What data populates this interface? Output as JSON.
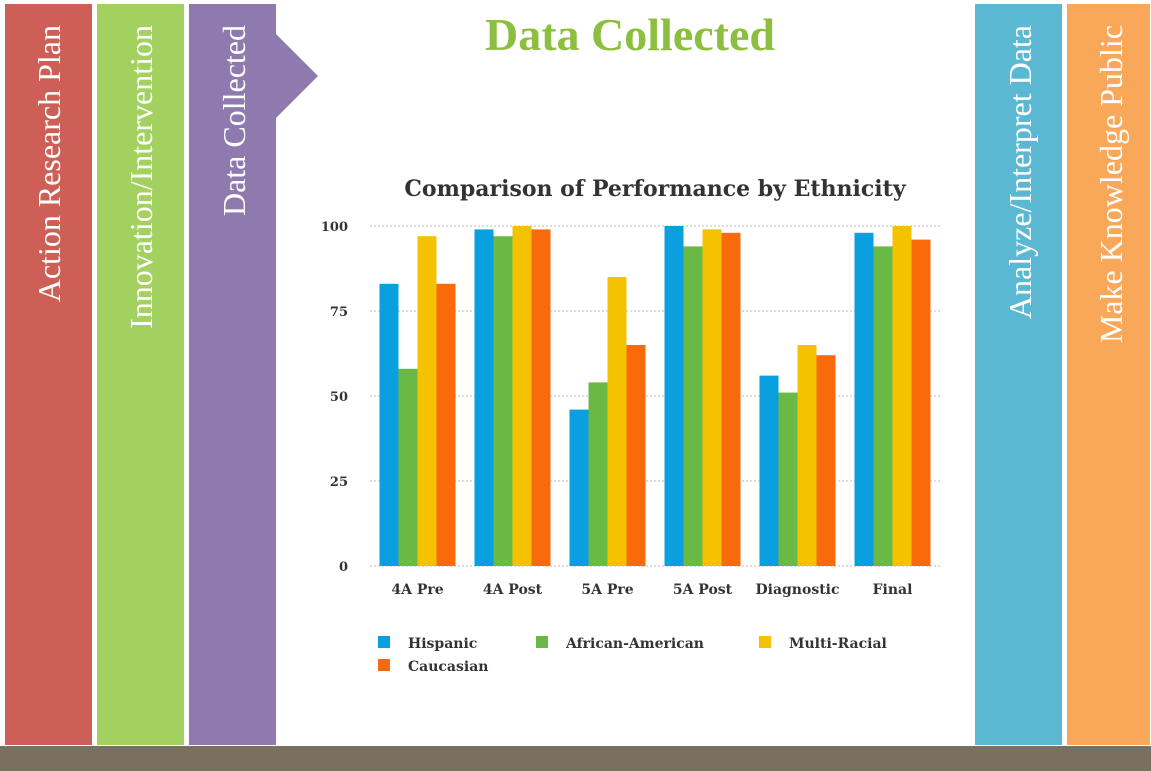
{
  "slide": {
    "title": "Data Collected",
    "left_tabs": [
      "Action Research Plan",
      "Innovation/Intervention",
      "Data Collected"
    ],
    "right_tabs": [
      "Analyze/Interpret  Data",
      "Make Knowledge Public"
    ]
  },
  "chart_data": {
    "type": "bar",
    "title": "Comparison of Performance by Ethnicity",
    "categories": [
      "4A Pre",
      "4A Post",
      "5A Pre",
      "5A Post",
      "Diagnostic",
      "Final"
    ],
    "series": [
      {
        "name": "Hispanic",
        "color": "#0a9fde",
        "values": [
          83,
          99,
          46,
          100,
          56,
          98
        ]
      },
      {
        "name": "African-American",
        "color": "#6ab945",
        "values": [
          58,
          97,
          54,
          94,
          51,
          94
        ]
      },
      {
        "name": "Multi-Racial",
        "color": "#f5c200",
        "values": [
          97,
          100,
          85,
          99,
          65,
          100
        ]
      },
      {
        "name": "Caucasian",
        "color": "#f96a0a",
        "values": [
          83,
          99,
          65,
          98,
          62,
          96
        ]
      }
    ],
    "ylim": [
      0,
      100
    ],
    "yticks": [
      0,
      25,
      50,
      75,
      100
    ],
    "grid": true,
    "legend": "bottom"
  }
}
